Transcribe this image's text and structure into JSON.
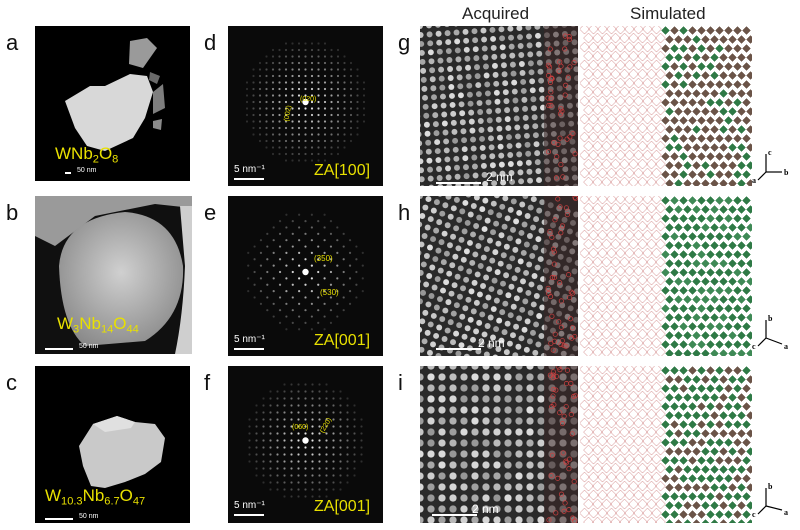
{
  "figure": {
    "rows": [
      {
        "label_left": "a",
        "label_mid": "d",
        "label_right": "g",
        "compound": {
          "parts": [
            [
              "W",
              ""
            ],
            [
              "Nb",
              "2"
            ],
            [
              "O",
              "8"
            ]
          ]
        },
        "particle_scale": "50 nm",
        "fft_scale": "5 nm⁻¹",
        "zone_axis": "ZA[100]",
        "spots": [
          "(002)",
          "(020)"
        ],
        "hr_scale": "2 nm",
        "axes": {
          "up": "c",
          "left": "a",
          "right": "b"
        }
      },
      {
        "label_left": "b",
        "label_mid": "e",
        "label_right": "h",
        "compound": {
          "parts": [
            [
              "W",
              "3"
            ],
            [
              "Nb",
              "14"
            ],
            [
              "O",
              "44"
            ]
          ]
        },
        "particle_scale": "50 nm",
        "fft_scale": "5 nm⁻¹",
        "zone_axis": "ZA[001]",
        "spots": [
          "(350)",
          "(530)"
        ],
        "hr_scale": "2 nm",
        "axes": {
          "up": "b",
          "left": "c",
          "right": "a"
        }
      },
      {
        "label_left": "c",
        "label_mid": "f",
        "label_right": "i",
        "compound": {
          "parts": [
            [
              "W",
              "10.3"
            ],
            [
              "Nb",
              "6.7"
            ],
            [
              "O",
              "47"
            ]
          ]
        },
        "particle_scale": "50 nm",
        "fft_scale": "5 nm⁻¹",
        "zone_axis": "ZA[001]",
        "spots": [
          "(060)",
          "(220)"
        ],
        "hr_scale": "2 nm",
        "axes": {
          "up": "b",
          "left": "c",
          "right": "a"
        }
      }
    ],
    "column_headers": {
      "acquired": "Acquired",
      "simulated": "Simulated"
    },
    "colors": {
      "annotation": "#e8e000",
      "polyhedra_brown": "#6b5448",
      "polyhedra_green": "#2f7a46",
      "lattice": "#c05a5a"
    }
  }
}
